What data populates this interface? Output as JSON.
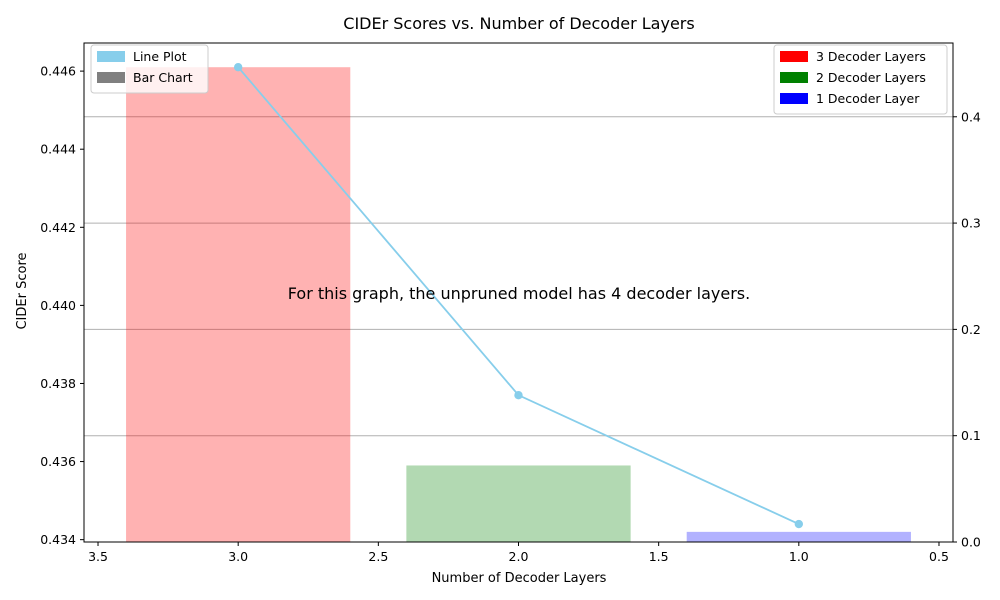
{
  "chart_data": {
    "type": "bar+line",
    "title": "CIDEr Scores vs. Number of Decoder Layers",
    "xlabel": "Number of Decoder Layers",
    "ylabel": "CIDEr Score",
    "xlim": [
      3.55,
      0.45
    ],
    "x_ticks": [
      "3.5",
      "3.0",
      "2.5",
      "2.0",
      "1.5",
      "1.0",
      "0.5"
    ],
    "ylim": [
      0.43394,
      0.44672
    ],
    "y_ticks": [
      "0.434",
      "0.436",
      "0.438",
      "0.440",
      "0.442",
      "0.444",
      "0.446"
    ],
    "y2lim": [
      0,
      0.4694
    ],
    "y2_ticks": [
      "0.0",
      "0.1",
      "0.2",
      "0.3",
      "0.4"
    ],
    "grid": "right axis horizontal lines",
    "bars": {
      "x": [
        3,
        2,
        1
      ],
      "values": [
        0.4461,
        0.4359,
        0.4342
      ],
      "labels": [
        "3 Decoder Layers",
        "2 Decoder Layers",
        "1 Decoder Layer"
      ],
      "colors": [
        "#ff0000",
        "#008000",
        "#0000ff"
      ],
      "alpha": 0.3,
      "width": 0.8
    },
    "line": {
      "x": [
        3,
        2,
        1
      ],
      "values": [
        0.4461,
        0.4377,
        0.4344
      ],
      "color": "#87ceeb"
    },
    "legend_left": {
      "placement": "top-left",
      "entries": [
        {
          "label": "Line Plot",
          "color": "#87ceeb"
        },
        {
          "label": "Bar Chart",
          "color": "#808080"
        }
      ]
    },
    "legend_right": {
      "placement": "top-right",
      "entries": [
        {
          "label": "3 Decoder Layers",
          "color": "#ff0000"
        },
        {
          "label": "2 Decoder Layers",
          "color": "#008000"
        },
        {
          "label": "1 Decoder Layer",
          "color": "#0000ff"
        }
      ]
    },
    "annotation": {
      "text": "For this graph, the unpruned model has 4 decoder layers.",
      "color": "#cc0000"
    }
  }
}
